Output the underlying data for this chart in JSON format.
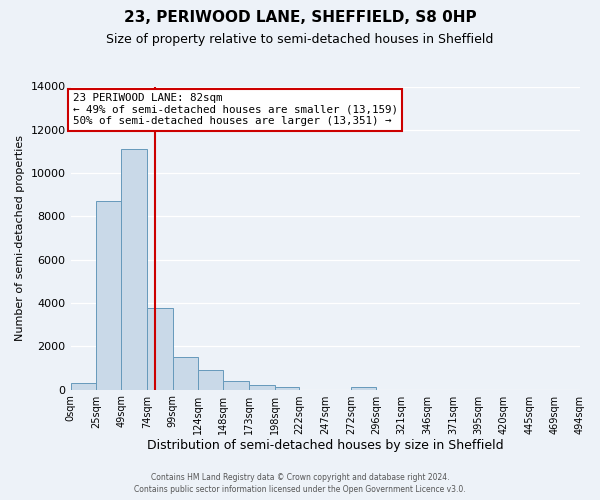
{
  "title": "23, PERIWOOD LANE, SHEFFIELD, S8 0HP",
  "subtitle": "Size of property relative to semi-detached houses in Sheffield",
  "xlabel": "Distribution of semi-detached houses by size in Sheffield",
  "ylabel": "Number of semi-detached properties",
  "bar_edges": [
    0,
    25,
    49,
    74,
    99,
    124,
    148,
    173,
    198,
    222,
    247,
    272,
    296,
    321,
    346,
    371,
    395,
    420,
    445,
    469,
    494
  ],
  "bar_heights": [
    300,
    8700,
    11100,
    3750,
    1500,
    900,
    400,
    200,
    130,
    0,
    0,
    110,
    0,
    0,
    0,
    0,
    0,
    0,
    0,
    0
  ],
  "bar_color": "#c9d9e8",
  "bar_edgecolor": "#6699bb",
  "vline_x": 82,
  "vline_color": "#cc0000",
  "annotation_title": "23 PERIWOOD LANE: 82sqm",
  "annotation_line1": "← 49% of semi-detached houses are smaller (13,159)",
  "annotation_line2": "50% of semi-detached houses are larger (13,351) →",
  "annotation_box_edgecolor": "#cc0000",
  "ylim": [
    0,
    14000
  ],
  "yticks": [
    0,
    2000,
    4000,
    6000,
    8000,
    10000,
    12000,
    14000
  ],
  "tick_labels": [
    "0sqm",
    "25sqm",
    "49sqm",
    "74sqm",
    "99sqm",
    "124sqm",
    "148sqm",
    "173sqm",
    "198sqm",
    "222sqm",
    "247sqm",
    "272sqm",
    "296sqm",
    "321sqm",
    "346sqm",
    "371sqm",
    "395sqm",
    "420sqm",
    "445sqm",
    "469sqm",
    "494sqm"
  ],
  "footer_line1": "Contains HM Land Registry data © Crown copyright and database right 2024.",
  "footer_line2": "Contains public sector information licensed under the Open Government Licence v3.0.",
  "bg_color": "#edf2f8",
  "plot_bg_color": "#edf2f8",
  "grid_color": "#ffffff",
  "title_fontsize": 11,
  "subtitle_fontsize": 9,
  "xlabel_fontsize": 9,
  "ylabel_fontsize": 8,
  "tick_fontsize": 7,
  "footer_fontsize": 5.5
}
